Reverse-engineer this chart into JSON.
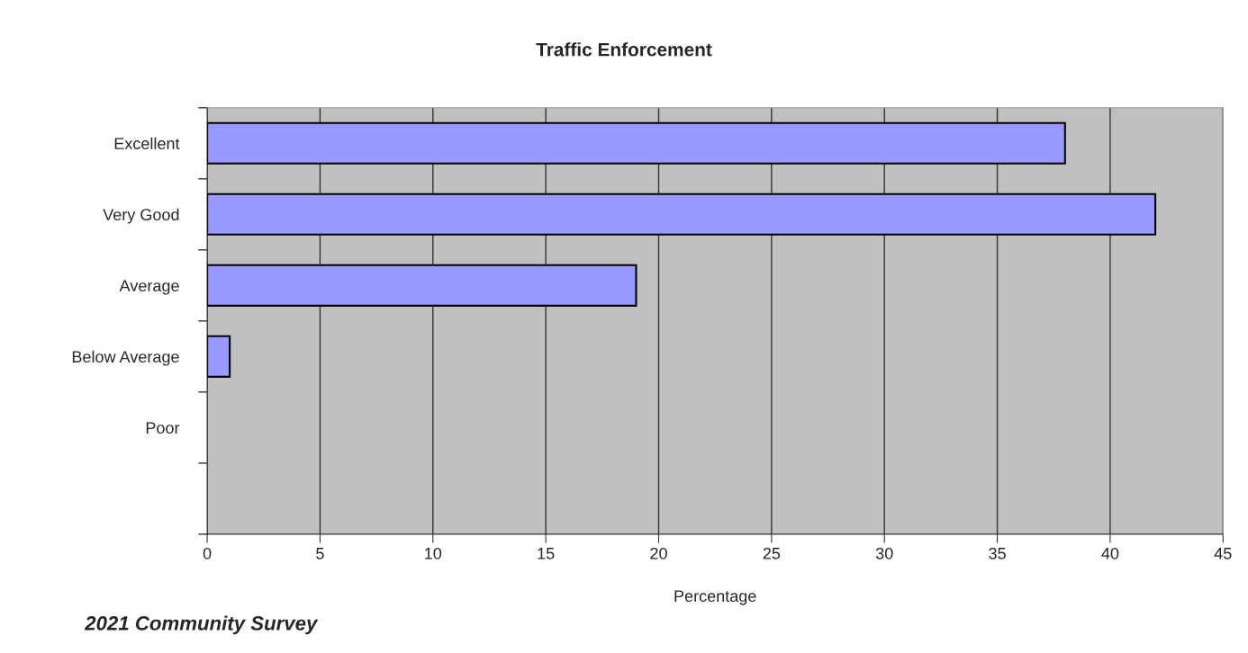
{
  "chart_data": {
    "type": "bar",
    "orientation": "horizontal",
    "title": "Traffic Enforcement",
    "xlabel": "Percentage",
    "categories": [
      "Excellent",
      "Very Good",
      "Average",
      "Below Average",
      "Poor",
      null
    ],
    "values": [
      38,
      42,
      19,
      1,
      0,
      null
    ],
    "color": "#9999ff",
    "xlim": [
      0,
      45
    ],
    "xticks": [
      0,
      5,
      10,
      15,
      20,
      25,
      30,
      35,
      40,
      45
    ],
    "grid": "x",
    "legend": false,
    "annotations": [
      "2021 Community Survey"
    ]
  }
}
